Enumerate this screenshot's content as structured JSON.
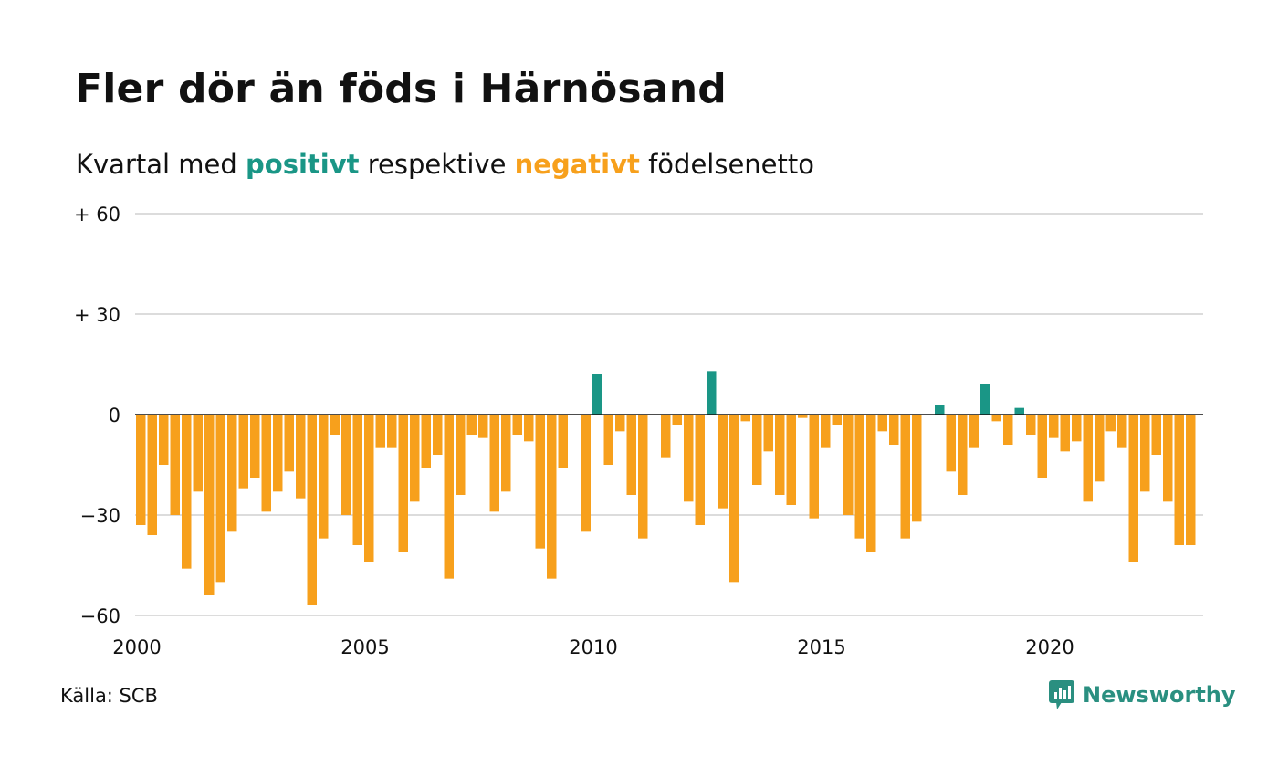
{
  "header": {
    "title": "Fler dör än föds i Härnösand",
    "subtitle_prefix": "Kvartal med ",
    "subtitle_positive": "positivt",
    "subtitle_middle": " respektive ",
    "subtitle_negative": "negativt",
    "subtitle_suffix": " födelsenetto"
  },
  "footer": {
    "source": "Källa: SCB",
    "brand": "Newsworthy"
  },
  "colors": {
    "positive": "#1a9686",
    "negative": "#f7a01c",
    "grid": "#dcdcdc",
    "brand": "#2a8f80"
  },
  "icons": {
    "brand_logo": "newsworthy-bar-chart-bubble-icon"
  },
  "chart_data": {
    "type": "bar",
    "title": "Fler dör än föds i Härnösand",
    "subtitle": "Kvartal med positivt respektive negativt födelsenetto",
    "x_start": "2000 Q1",
    "x_frequency": "quarterly",
    "x_tick_labels": [
      "2000",
      "2005",
      "2010",
      "2015",
      "2020"
    ],
    "y_ticks": [
      {
        "value": 60,
        "label": "+ 60"
      },
      {
        "value": 30,
        "label": "+ 30"
      },
      {
        "value": 0,
        "label": "0"
      },
      {
        "value": -30,
        "label": "−30"
      },
      {
        "value": -60,
        "label": "−60"
      }
    ],
    "ylim": [
      -60,
      60
    ],
    "grid": true,
    "legend": "none",
    "values": [
      -33,
      -36,
      -15,
      -30,
      -46,
      -23,
      -54,
      -50,
      -35,
      -22,
      -19,
      -29,
      -23,
      -17,
      -25,
      -57,
      -37,
      -6,
      -30,
      -39,
      -44,
      -10,
      -10,
      -41,
      -26,
      -16,
      -12,
      -49,
      -24,
      -6,
      -7,
      -29,
      -23,
      -6,
      -8,
      -40,
      -49,
      -16,
      0,
      -35,
      12,
      -15,
      -5,
      -24,
      -37,
      0,
      -13,
      -3,
      -26,
      -33,
      13,
      -28,
      -50,
      -2,
      -21,
      -11,
      -24,
      -27,
      -1,
      -31,
      -10,
      -3,
      -30,
      -37,
      -41,
      -5,
      -9,
      -37,
      -32,
      0,
      3,
      -17,
      -24,
      -10,
      9,
      -2,
      -9,
      2,
      -6,
      -19,
      -7,
      -11,
      -8,
      -26,
      -20,
      -5,
      -10,
      -44,
      -23,
      -12,
      -26,
      -39,
      -39
    ]
  }
}
